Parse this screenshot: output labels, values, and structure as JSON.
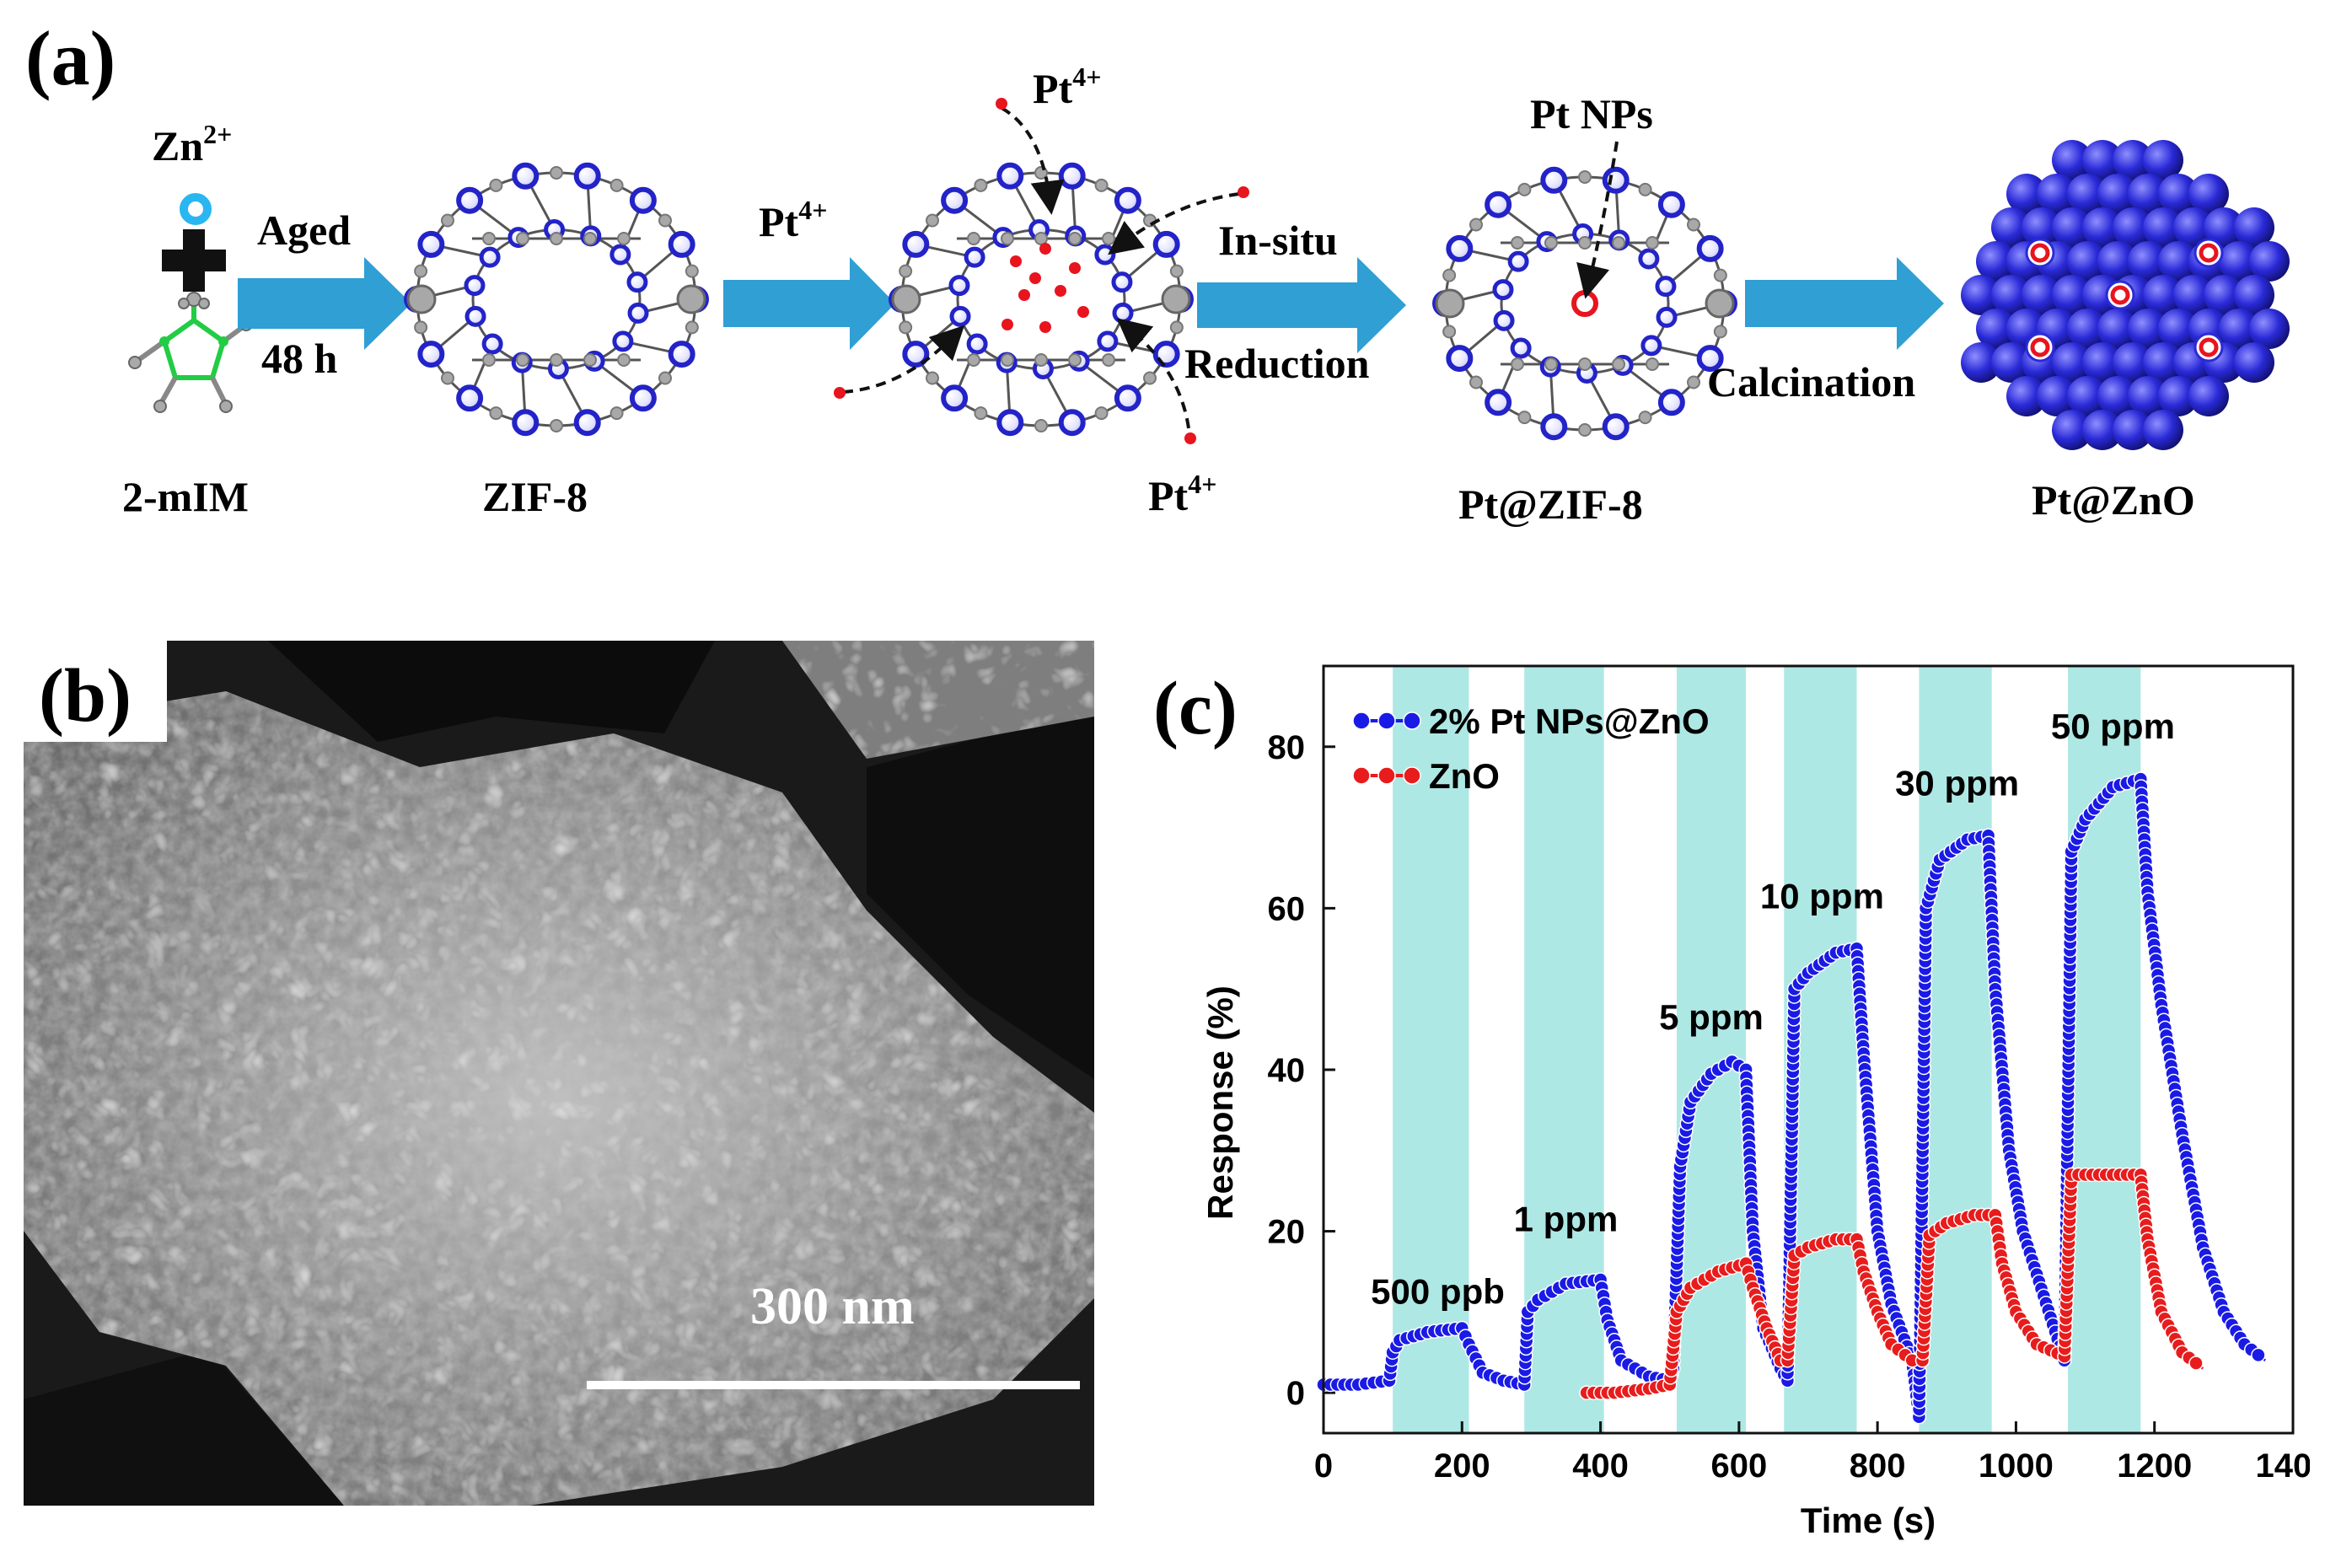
{
  "panel_a": {
    "label": "(a)",
    "zn_label": "Zn",
    "zn_sup": "2+",
    "ligand_label": "2-mIM",
    "arrow1_top": "Aged",
    "arrow1_bottom": "48 h",
    "zif8_label": "ZIF-8",
    "pt_label": "Pt",
    "pt_sup": "4+",
    "arrow3_top": "In-situ",
    "arrow3_bottom": "Reduction",
    "pt_nps_label": "Pt NPs",
    "pt_zif8_label": "Pt@ZIF-8",
    "arrow4_label": "Calcination",
    "pt_zno_label": "Pt@ZnO",
    "colors": {
      "arrow": "#2f9fd4",
      "node": "#2323c8",
      "gray": "#a8a8a8",
      "red": "#e8141e",
      "ligand": "#22cc44",
      "zn_ion": "#2ab6f0"
    }
  },
  "panel_b": {
    "label": "(b)",
    "scale_label": "300 nm"
  },
  "panel_c": {
    "label": "(c)",
    "chart_data": {
      "type": "line",
      "xlabel": "Time (s)",
      "ylabel": "Response (%)",
      "xlim": [
        0,
        1400
      ],
      "ylim": [
        -5,
        90
      ],
      "xticks": [
        0,
        200,
        400,
        600,
        800,
        1000,
        1200,
        1400
      ],
      "yticks": [
        0,
        20,
        40,
        60,
        80
      ],
      "legend_placement": "top-left",
      "exposure_bands": [
        [
          100,
          210
        ],
        [
          290,
          405
        ],
        [
          510,
          610
        ],
        [
          665,
          770
        ],
        [
          860,
          965
        ],
        [
          1075,
          1180
        ]
      ],
      "band_color": "#aee8e4",
      "annotations": [
        {
          "text": "500 ppb",
          "x": 165,
          "y": 11
        },
        {
          "text": "1 ppm",
          "x": 350,
          "y": 20
        },
        {
          "text": "5 ppm",
          "x": 560,
          "y": 45
        },
        {
          "text": "10 ppm",
          "x": 720,
          "y": 60
        },
        {
          "text": "30 ppm",
          "x": 915,
          "y": 74
        },
        {
          "text": "50 ppm",
          "x": 1140,
          "y": 81
        }
      ],
      "series": [
        {
          "name": "2% Pt NPs@ZnO",
          "color": "#1a1ae6",
          "points": [
            [
              0,
              1
            ],
            [
              50,
              1
            ],
            [
              95,
              1.5
            ],
            [
              100,
              5
            ],
            [
              110,
              6.5
            ],
            [
              150,
              7.5
            ],
            [
              200,
              8
            ],
            [
              210,
              6
            ],
            [
              230,
              2.5
            ],
            [
              260,
              1.5
            ],
            [
              290,
              1
            ],
            [
              295,
              10
            ],
            [
              310,
              11.5
            ],
            [
              350,
              13.5
            ],
            [
              400,
              14
            ],
            [
              410,
              9
            ],
            [
              430,
              4
            ],
            [
              470,
              2
            ],
            [
              500,
              1.5
            ],
            [
              505,
              3
            ],
            [
              515,
              28
            ],
            [
              530,
              36
            ],
            [
              560,
              39.5
            ],
            [
              590,
              41
            ],
            [
              610,
              40
            ],
            [
              620,
              20
            ],
            [
              635,
              8
            ],
            [
              660,
              3
            ],
            [
              670,
              1.5
            ],
            [
              680,
              50
            ],
            [
              700,
              52
            ],
            [
              740,
              54.5
            ],
            [
              770,
              55
            ],
            [
              780,
              42
            ],
            [
              800,
              20
            ],
            [
              820,
              11
            ],
            [
              850,
              4
            ],
            [
              860,
              -3
            ],
            [
              870,
              60
            ],
            [
              890,
              66
            ],
            [
              930,
              68.5
            ],
            [
              960,
              69
            ],
            [
              970,
              50
            ],
            [
              990,
              30
            ],
            [
              1010,
              20
            ],
            [
              1040,
              12
            ],
            [
              1070,
              4
            ],
            [
              1080,
              67
            ],
            [
              1100,
              71
            ],
            [
              1140,
              75
            ],
            [
              1180,
              76
            ],
            [
              1190,
              62
            ],
            [
              1210,
              48
            ],
            [
              1240,
              32
            ],
            [
              1270,
              18
            ],
            [
              1300,
              10
            ],
            [
              1330,
              6
            ],
            [
              1360,
              4
            ]
          ]
        },
        {
          "name": "ZnO",
          "color": "#e81c1c",
          "points": [
            [
              380,
              0
            ],
            [
              420,
              0
            ],
            [
              470,
              0.5
            ],
            [
              500,
              1
            ],
            [
              510,
              10
            ],
            [
              530,
              13
            ],
            [
              570,
              15
            ],
            [
              610,
              16
            ],
            [
              620,
              13
            ],
            [
              640,
              8
            ],
            [
              660,
              4
            ],
            [
              670,
              4
            ],
            [
              680,
              17
            ],
            [
              700,
              18
            ],
            [
              740,
              19
            ],
            [
              770,
              19
            ],
            [
              780,
              15
            ],
            [
              800,
              10
            ],
            [
              820,
              6
            ],
            [
              850,
              4
            ],
            [
              865,
              4
            ],
            [
              875,
              19.5
            ],
            [
              900,
              21
            ],
            [
              940,
              22
            ],
            [
              970,
              22
            ],
            [
              980,
              16
            ],
            [
              1000,
              10
            ],
            [
              1030,
              6
            ],
            [
              1070,
              4.5
            ],
            [
              1080,
              27
            ],
            [
              1100,
              27
            ],
            [
              1150,
              27
            ],
            [
              1180,
              27
            ],
            [
              1190,
              19
            ],
            [
              1210,
              10
            ],
            [
              1240,
              5
            ],
            [
              1270,
              3
            ]
          ]
        }
      ]
    }
  }
}
